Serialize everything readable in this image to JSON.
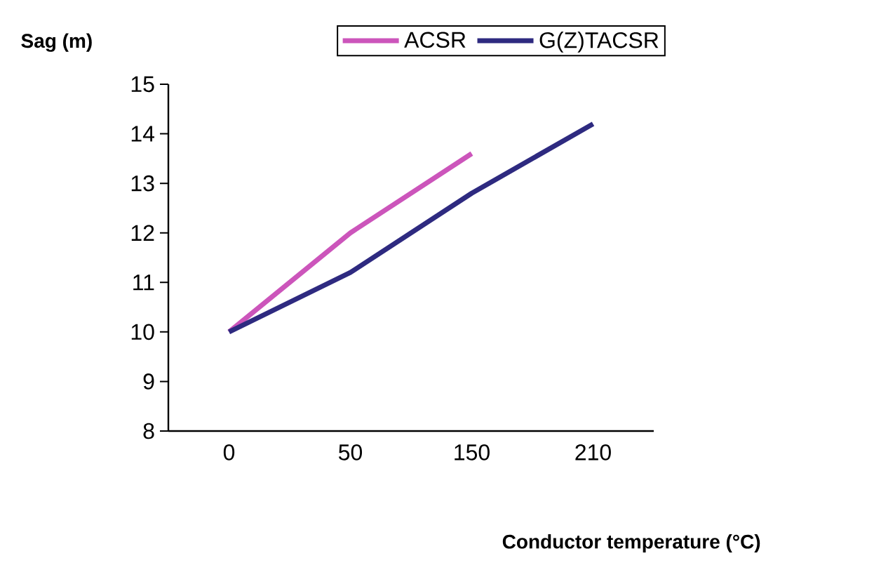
{
  "chart_data": {
    "type": "line",
    "xlabel": "Conductor temperature (°C)",
    "ylabel": "Sag (m)",
    "categories": [
      "0",
      "50",
      "150",
      "210"
    ],
    "series": [
      {
        "name": "ACSR",
        "color": "#cc55bb",
        "values": [
          10,
          12,
          13.6,
          null
        ]
      },
      {
        "name": "G(Z)TACSR",
        "color": "#2e2a80",
        "values": [
          10,
          11.2,
          12.8,
          14.2
        ]
      }
    ],
    "ylim": [
      8,
      15
    ],
    "yticks": [
      8,
      9,
      10,
      11,
      12,
      13,
      14,
      15
    ],
    "legend": "top right",
    "grid": false,
    "marker": "none",
    "line_style": "solid"
  }
}
